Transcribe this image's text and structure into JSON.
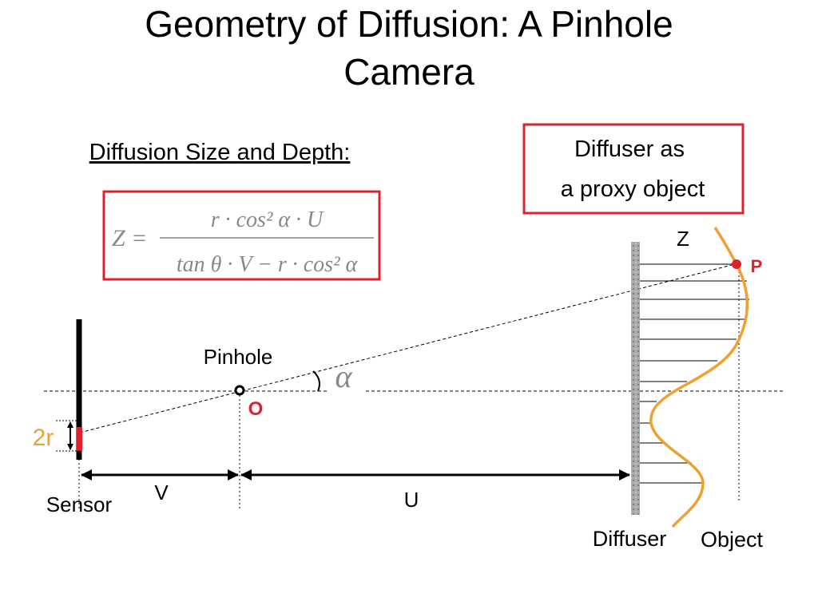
{
  "header": {
    "title": "Geometry of Diffusion: A Pinhole Camera",
    "subtitle": "Diffusion Size and Depth:"
  },
  "callout": {
    "lines": [
      "Diffuser as",
      "a proxy object"
    ]
  },
  "formula": {
    "lhs": "Z =",
    "numerator": "r · cos² α · U",
    "denominator": "tan θ · V − r · cos² α"
  },
  "labels": {
    "depth": "Z",
    "point": "P",
    "pinhole": "Pinhole",
    "angle": "α",
    "origin": "O",
    "size": "2r",
    "v": "V",
    "u": "U",
    "sensor": "Sensor",
    "diffuser": "Diffuser",
    "object": "Object"
  }
}
